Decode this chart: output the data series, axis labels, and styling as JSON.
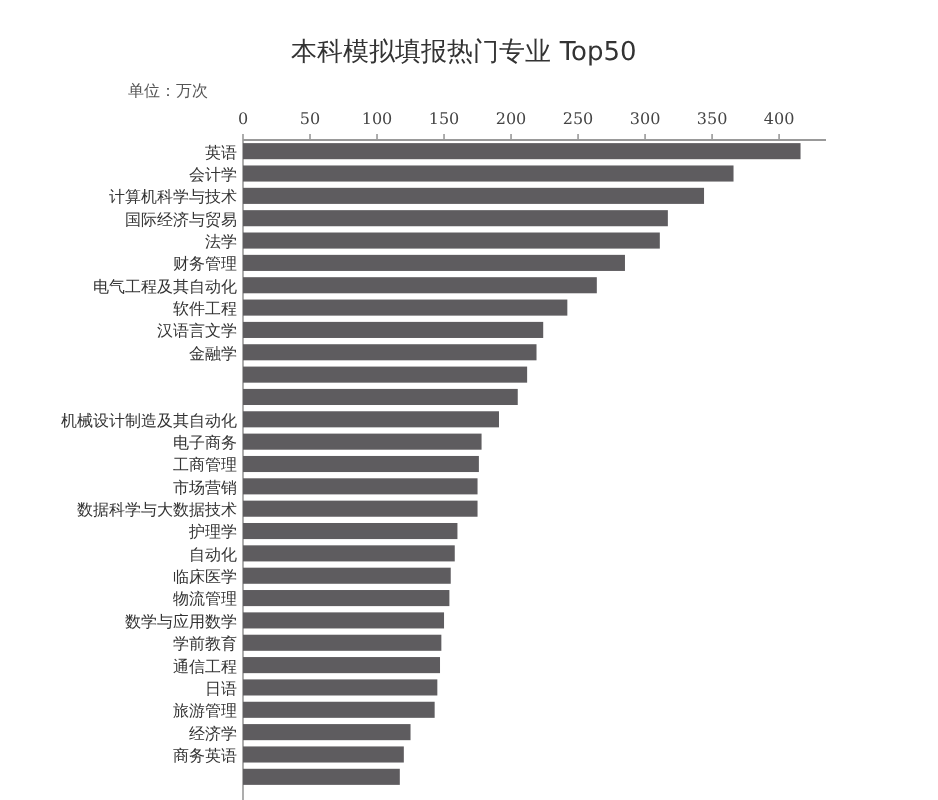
{
  "chart_data": {
    "type": "bar",
    "orientation": "horizontal",
    "title": "本科模拟填报热门专业 Top50",
    "xlabel": "单位：万次",
    "categories": [
      "英语",
      "会计学",
      "计算机科学与技术",
      "国际经济与贸易",
      "法学",
      "财务管理",
      "电气工程及其自动化",
      "软件工程",
      "汉语言文学",
      "金融学",
      null,
      null,
      "机械设计制造及其自动化",
      "电子商务",
      "工商管理",
      "市场营销",
      "数据科学与大数据技术",
      "护理学",
      "自动化",
      "临床医学",
      "物流管理",
      "数学与应用数学",
      "学前教育",
      "通信工程",
      "日语",
      "旅游管理",
      "经济学",
      "商务英语",
      null
    ],
    "values": [
      416,
      366,
      344,
      317,
      311,
      285,
      264,
      242,
      224,
      219,
      212,
      205,
      191,
      178,
      176,
      175,
      175,
      160,
      158,
      155,
      154,
      150,
      148,
      147,
      145,
      143,
      125,
      120,
      117
    ],
    "color": "#5e5c5f",
    "xlim": [
      0,
      435
    ],
    "xticks": [
      0,
      50,
      100,
      150,
      200,
      250,
      300,
      350,
      400
    ],
    "grid": false
  }
}
